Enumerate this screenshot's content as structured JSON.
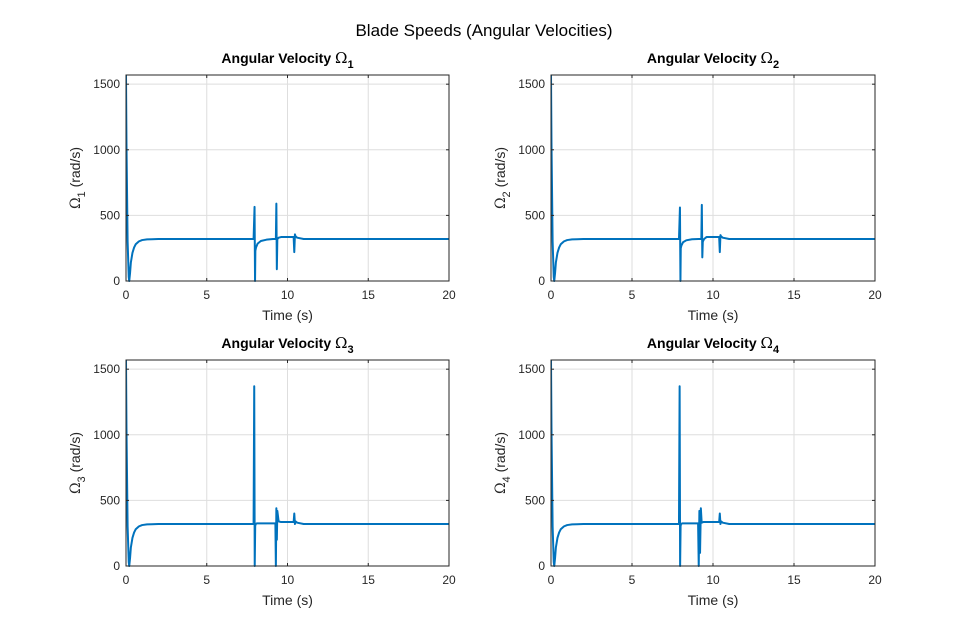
{
  "figure_title": "Blade Speeds (Angular Velocities)",
  "colors": {
    "line": "#0072BD",
    "grid": "#dedede",
    "axes": "#262626"
  },
  "chart_data": [
    {
      "type": "line",
      "title": "Angular Velocity",
      "title_symbol": "Ω",
      "title_subscript": "1",
      "xlabel": "Time (s)",
      "ylabel_symbol": "Ω",
      "ylabel_subscript": "1",
      "ylabel_unit": "(rad/s)",
      "xlim": [
        0,
        20
      ],
      "ylim": [
        0,
        1570
      ],
      "xticks": [
        0,
        5,
        10,
        15,
        20
      ],
      "yticks": [
        0,
        500,
        1000,
        1500
      ],
      "grid": true,
      "series": [
        {
          "name": "Omega1",
          "x": [
            0,
            0.03,
            0.1,
            0.17,
            0.2,
            0.25,
            0.3,
            0.4,
            0.5,
            0.6,
            0.8,
            1.0,
            1.3,
            1.6,
            2,
            4,
            6,
            7.9,
            7.96,
            7.99,
            8.01,
            8.05,
            8.15,
            8.35,
            8.7,
            9.1,
            9.28,
            9.31,
            9.34,
            9.37,
            9.45,
            9.6,
            9.9,
            10.2,
            10.38,
            10.42,
            10.46,
            10.5,
            10.6,
            11,
            13,
            16,
            20
          ],
          "y": [
            1570,
            1050,
            300,
            30,
            0,
            60,
            140,
            215,
            255,
            280,
            302,
            312,
            317,
            318,
            320,
            320,
            320,
            320,
            565,
            0,
            230,
            255,
            285,
            305,
            315,
            320,
            320,
            590,
            90,
            320,
            330,
            335,
            335,
            335,
            335,
            220,
            355,
            340,
            330,
            320,
            320,
            320,
            320
          ]
        }
      ]
    },
    {
      "type": "line",
      "title": "Angular Velocity",
      "title_symbol": "Ω",
      "title_subscript": "2",
      "xlabel": "Time (s)",
      "ylabel_symbol": "Ω",
      "ylabel_subscript": "2",
      "ylabel_unit": "(rad/s)",
      "xlim": [
        0,
        20
      ],
      "ylim": [
        0,
        1570
      ],
      "xticks": [
        0,
        5,
        10,
        15,
        20
      ],
      "yticks": [
        0,
        500,
        1000,
        1500
      ],
      "grid": true,
      "series": [
        {
          "name": "Omega2",
          "x": [
            0,
            0.03,
            0.1,
            0.17,
            0.2,
            0.25,
            0.3,
            0.4,
            0.5,
            0.6,
            0.8,
            1.0,
            1.3,
            1.6,
            2,
            4,
            6,
            7.9,
            7.96,
            7.99,
            8.01,
            8.05,
            8.15,
            8.35,
            8.7,
            9.1,
            9.28,
            9.31,
            9.34,
            9.37,
            9.45,
            9.6,
            9.9,
            10.2,
            10.38,
            10.42,
            10.46,
            10.5,
            10.6,
            11,
            13,
            16,
            20
          ],
          "y": [
            1570,
            1050,
            300,
            30,
            0,
            60,
            140,
            215,
            255,
            280,
            302,
            312,
            317,
            318,
            320,
            320,
            320,
            320,
            560,
            0,
            250,
            270,
            295,
            310,
            318,
            320,
            320,
            580,
            180,
            300,
            320,
            335,
            335,
            335,
            335,
            220,
            350,
            340,
            330,
            320,
            320,
            320,
            320
          ]
        }
      ]
    },
    {
      "type": "line",
      "title": "Angular Velocity",
      "title_symbol": "Ω",
      "title_subscript": "3",
      "xlabel": "Time (s)",
      "ylabel_symbol": "Ω",
      "ylabel_subscript": "3",
      "ylabel_unit": "(rad/s)",
      "xlim": [
        0,
        20
      ],
      "ylim": [
        0,
        1570
      ],
      "xticks": [
        0,
        5,
        10,
        15,
        20
      ],
      "yticks": [
        0,
        500,
        1000,
        1500
      ],
      "grid": true,
      "series": [
        {
          "name": "Omega3",
          "x": [
            0,
            0.03,
            0.1,
            0.17,
            0.2,
            0.25,
            0.3,
            0.4,
            0.5,
            0.6,
            0.8,
            1.0,
            1.3,
            1.6,
            2,
            4,
            6,
            7.9,
            7.94,
            7.97,
            8.0,
            8.03,
            8.1,
            8.3,
            8.7,
            9.1,
            9.25,
            9.28,
            9.31,
            9.34,
            9.37,
            9.45,
            9.6,
            9.9,
            10.2,
            10.38,
            10.42,
            10.46,
            10.5,
            10.6,
            11,
            13,
            16,
            20
          ],
          "y": [
            1570,
            1050,
            300,
            30,
            0,
            60,
            140,
            215,
            255,
            280,
            302,
            312,
            317,
            318,
            320,
            320,
            320,
            320,
            1370,
            0,
            305,
            320,
            325,
            325,
            325,
            325,
            325,
            0,
            440,
            200,
            420,
            340,
            335,
            335,
            335,
            335,
            400,
            320,
            340,
            330,
            320,
            320,
            320,
            320
          ]
        }
      ]
    },
    {
      "type": "line",
      "title": "Angular Velocity",
      "title_symbol": "Ω",
      "title_subscript": "4",
      "xlabel": "Time (s)",
      "ylabel_symbol": "Ω",
      "ylabel_subscript": "4",
      "ylabel_unit": "(rad/s)",
      "xlim": [
        0,
        20
      ],
      "ylim": [
        0,
        1570
      ],
      "xticks": [
        0,
        5,
        10,
        15,
        20
      ],
      "yticks": [
        0,
        500,
        1000,
        1500
      ],
      "grid": true,
      "series": [
        {
          "name": "Omega4",
          "x": [
            0,
            0.03,
            0.1,
            0.17,
            0.2,
            0.25,
            0.3,
            0.4,
            0.5,
            0.6,
            0.8,
            1.0,
            1.3,
            1.6,
            2,
            4,
            6,
            7.9,
            7.94,
            7.97,
            8.0,
            8.03,
            8.1,
            8.3,
            8.7,
            9.0,
            9.08,
            9.12,
            9.16,
            9.2,
            9.25,
            9.3,
            9.4,
            9.7,
            10.0,
            10.3,
            10.38,
            10.42,
            10.46,
            10.5,
            10.6,
            11,
            13,
            16,
            20
          ],
          "y": [
            1570,
            1050,
            300,
            30,
            0,
            60,
            140,
            215,
            255,
            280,
            302,
            312,
            317,
            318,
            320,
            320,
            320,
            320,
            1370,
            0,
            305,
            320,
            325,
            325,
            325,
            325,
            325,
            0,
            420,
            100,
            440,
            330,
            335,
            335,
            335,
            335,
            335,
            400,
            320,
            340,
            330,
            320,
            320,
            320,
            320
          ]
        }
      ]
    }
  ]
}
